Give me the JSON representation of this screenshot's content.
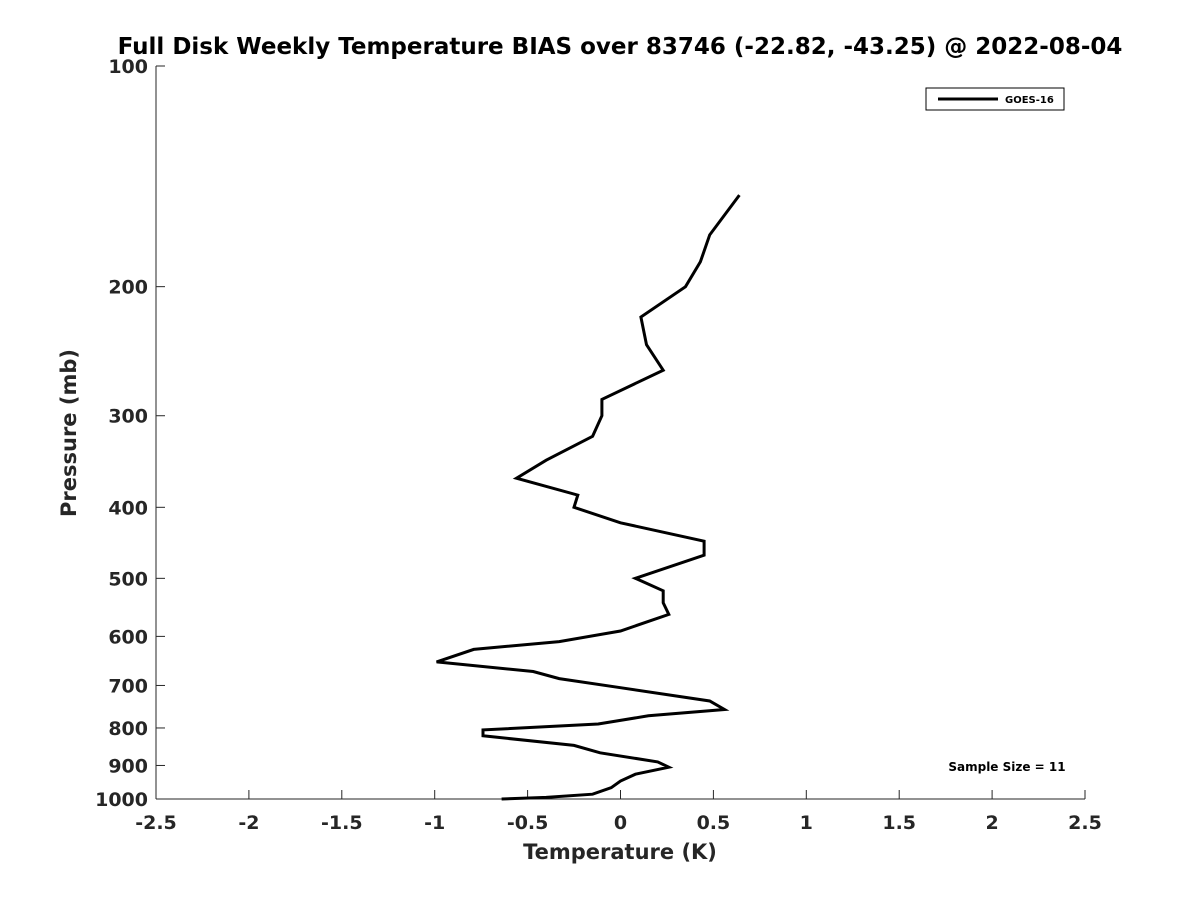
{
  "chart_data": {
    "type": "line",
    "title": "Full Disk Weekly Temperature BIAS over 83746 (-22.82, -43.25) @ 2022-08-04",
    "xlabel": "Temperature (K)",
    "ylabel": "Pressure (mb)",
    "xlim": [
      -2.5,
      2.5
    ],
    "ylim": [
      100,
      1000
    ],
    "y_scale": "log",
    "y_reversed": true,
    "x_ticks": [
      -2.5,
      -2,
      -1.5,
      -1,
      -0.5,
      0,
      0.5,
      1,
      1.5,
      2,
      2.5
    ],
    "x_tick_labels": [
      "-2.5",
      "-2",
      "-1.5",
      "-1",
      "-0.5",
      "0",
      "0.5",
      "1",
      "1.5",
      "2",
      "2.5"
    ],
    "y_ticks": [
      100,
      200,
      300,
      400,
      500,
      600,
      700,
      800,
      900,
      1000
    ],
    "y_tick_labels": [
      "100",
      "200",
      "300",
      "400",
      "500",
      "600",
      "700",
      "800",
      "900",
      "1000"
    ],
    "grid": false,
    "legend_position": "top-right",
    "annotation": "Sample Size = 11",
    "series": [
      {
        "name": "GOES-16",
        "color": "#000000",
        "points": [
          {
            "x": 0.64,
            "p": 150
          },
          {
            "x": 0.48,
            "p": 170
          },
          {
            "x": 0.43,
            "p": 185
          },
          {
            "x": 0.35,
            "p": 200
          },
          {
            "x": 0.11,
            "p": 220
          },
          {
            "x": 0.14,
            "p": 240
          },
          {
            "x": 0.23,
            "p": 260
          },
          {
            "x": -0.1,
            "p": 285
          },
          {
            "x": -0.1,
            "p": 300
          },
          {
            "x": -0.15,
            "p": 320
          },
          {
            "x": -0.4,
            "p": 345
          },
          {
            "x": -0.56,
            "p": 365
          },
          {
            "x": -0.23,
            "p": 385
          },
          {
            "x": -0.25,
            "p": 400
          },
          {
            "x": 0.0,
            "p": 420
          },
          {
            "x": 0.45,
            "p": 445
          },
          {
            "x": 0.45,
            "p": 465
          },
          {
            "x": 0.08,
            "p": 500
          },
          {
            "x": 0.23,
            "p": 520
          },
          {
            "x": 0.23,
            "p": 540
          },
          {
            "x": 0.26,
            "p": 560
          },
          {
            "x": 0.0,
            "p": 590
          },
          {
            "x": -0.33,
            "p": 610
          },
          {
            "x": -0.79,
            "p": 625
          },
          {
            "x": -0.99,
            "p": 650
          },
          {
            "x": -0.47,
            "p": 670
          },
          {
            "x": -0.33,
            "p": 685
          },
          {
            "x": 0.0,
            "p": 705
          },
          {
            "x": 0.48,
            "p": 735
          },
          {
            "x": 0.56,
            "p": 755
          },
          {
            "x": 0.15,
            "p": 770
          },
          {
            "x": -0.12,
            "p": 790
          },
          {
            "x": -0.74,
            "p": 805
          },
          {
            "x": -0.74,
            "p": 820
          },
          {
            "x": -0.25,
            "p": 845
          },
          {
            "x": -0.11,
            "p": 865
          },
          {
            "x": 0.2,
            "p": 890
          },
          {
            "x": 0.26,
            "p": 905
          },
          {
            "x": 0.08,
            "p": 925
          },
          {
            "x": 0.0,
            "p": 945
          },
          {
            "x": -0.05,
            "p": 965
          },
          {
            "x": -0.15,
            "p": 985
          },
          {
            "x": -0.4,
            "p": 995
          },
          {
            "x": -0.64,
            "p": 1000
          }
        ]
      }
    ]
  }
}
